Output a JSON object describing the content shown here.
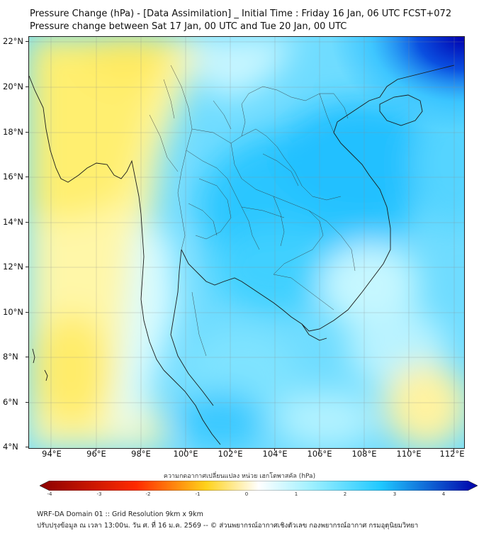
{
  "title": {
    "line1": "Pressure Change (hPa) - [Data Assimilation] _ Initial Time : Friday 16 Jan, 06 UTC FCST+072",
    "line2": "Pressure change between Sat 17 Jan, 00 UTC and Tue 20 Jan, 00 UTC"
  },
  "map": {
    "lat_labels": [
      "22°N",
      "20°N",
      "18°N",
      "16°N",
      "14°N",
      "12°N",
      "10°N",
      "8°N",
      "6°N",
      "4°N"
    ],
    "lon_labels": [
      "94°E",
      "96°E",
      "98°E",
      "100°E",
      "102°E",
      "104°E",
      "106°E",
      "108°E",
      "110°E",
      "112°E"
    ],
    "extent": {
      "lon_min": 93.0,
      "lon_max": 112.5,
      "lat_min": 4.0,
      "lat_max": 22.3
    },
    "field": "pressure change",
    "units": "hPa"
  },
  "colorbar": {
    "title": "ความกดอากาศเปลี่ยนแปลง หน่วย เฮกโตพาสคัล (hPa)",
    "range": [
      -4,
      4
    ],
    "tick_labels": [
      "-4",
      "-3",
      "-2",
      "-1",
      "0",
      "1",
      "2",
      "3",
      "4"
    ],
    "colors": {
      "neg_strong": "#8b0000",
      "neg_mid": "#ff2a00",
      "neg_low": "#ffd21a",
      "neutral": "#ffffff",
      "pos_low": "#9ff0ff",
      "pos_mid": "#1fc8ff",
      "pos_strong": "#0000aa"
    }
  },
  "footer": {
    "line1": "WRF-DA Domain 01 :: Grid Resolution 9km x 9km",
    "line2": "ปรับปรุงข้อมูล ณ เวลา 13:00น. วัน ศ. ที่ 16 ม.ค. 2569 -- © ส่วนพยากรณ์อากาศเชิงตัวเลข กองพยากรณ์อากาศ กรมอุตุนิยมวิทยา"
  }
}
